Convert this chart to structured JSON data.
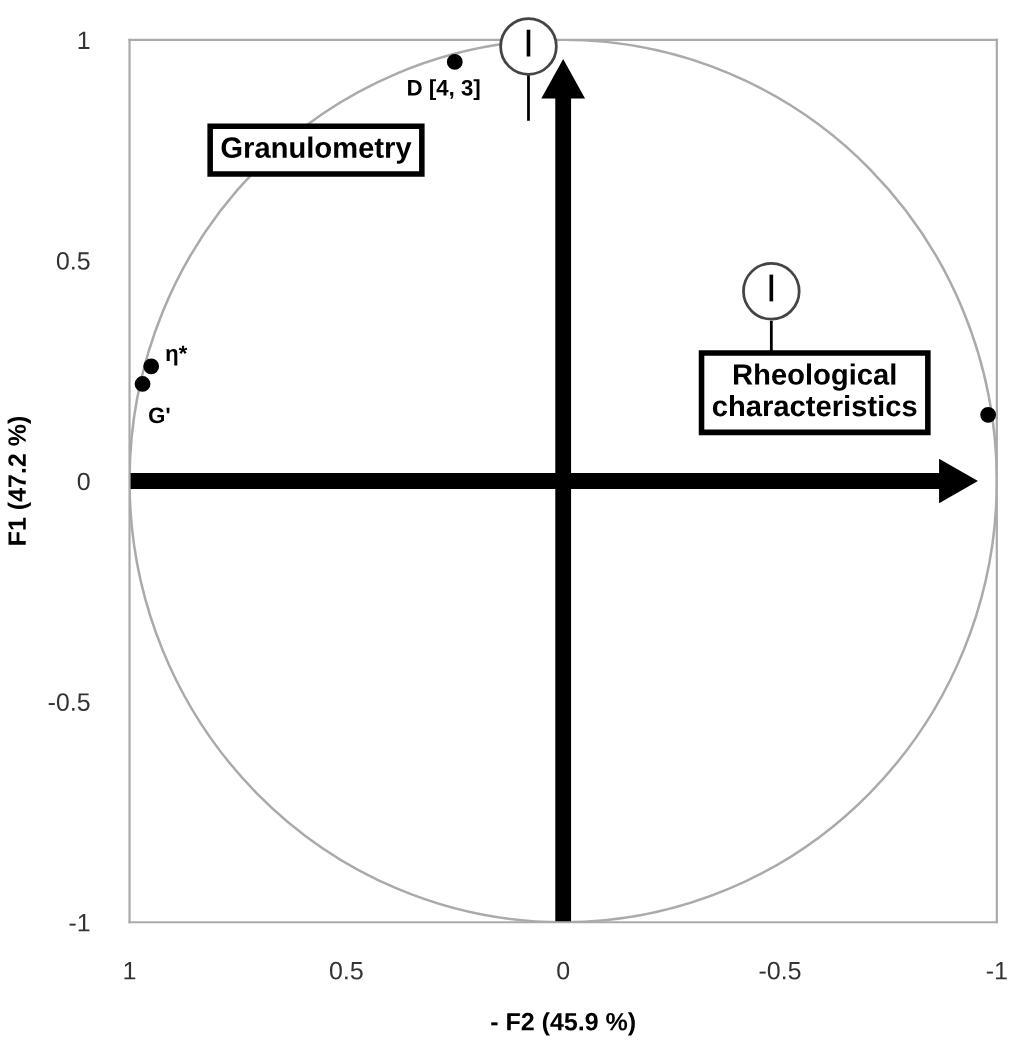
{
  "chart_data": {
    "type": "scatter",
    "xlabel": "- F2 (45.9 %)",
    "ylabel": "F1 (47.2 %)",
    "x": [
      0.25,
      0.95,
      0.97,
      -0.98
    ],
    "series": [
      {
        "color": "#000000",
        "values": [
          0.95,
          0.26,
          0.22,
          0.15
        ]
      }
    ],
    "xlim": [
      1,
      -1
    ],
    "ylim": [
      -1,
      1
    ],
    "xticks": [
      1,
      0.5,
      0,
      -0.5,
      -1
    ],
    "yticks": [
      -1,
      -0.5,
      0,
      0.5,
      1
    ],
    "grid": false,
    "legend": false,
    "marker": "circle",
    "annotations": [
      {
        "text": "D [4, 3]",
        "x": 0.25,
        "y": 0.95
      },
      {
        "text": "η*",
        "x": 0.95,
        "y": 0.26
      },
      {
        "text": "G'",
        "x": 0.97,
        "y": 0.22
      },
      "Granulometry",
      "Rheological\ncharacteristics",
      "I",
      "I"
    ]
  }
}
